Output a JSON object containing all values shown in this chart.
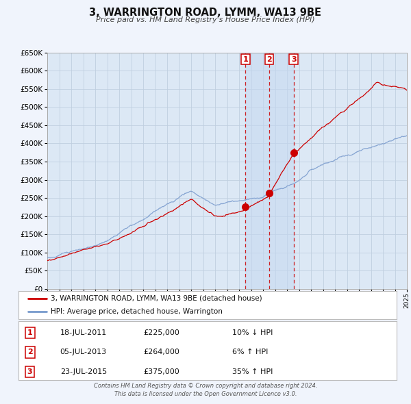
{
  "title": "3, WARRINGTON ROAD, LYMM, WA13 9BE",
  "subtitle": "Price paid vs. HM Land Registry's House Price Index (HPI)",
  "background_color": "#f0f4fc",
  "plot_bg_color": "#dce8f5",
  "grid_color": "#c0cfe0",
  "red_line_color": "#cc0000",
  "blue_line_color": "#7799cc",
  "ylim": [
    0,
    650000
  ],
  "xlim": [
    1995,
    2025
  ],
  "yticks": [
    0,
    50000,
    100000,
    150000,
    200000,
    250000,
    300000,
    350000,
    400000,
    450000,
    500000,
    550000,
    600000,
    650000
  ],
  "sale_events": [
    {
      "date_num": 2011.54,
      "price": 225000,
      "label": "1",
      "hpi_pct": "10% ↓ HPI",
      "date_str": "18-JUL-2011",
      "price_str": "£225,000"
    },
    {
      "date_num": 2013.51,
      "price": 264000,
      "label": "2",
      "hpi_pct": "6% ↑ HPI",
      "date_str": "05-JUL-2013",
      "price_str": "£264,000"
    },
    {
      "date_num": 2015.55,
      "price": 375000,
      "label": "3",
      "hpi_pct": "35% ↑ HPI",
      "date_str": "23-JUL-2015",
      "price_str": "£375,000"
    }
  ],
  "legend_red": "3, WARRINGTON ROAD, LYMM, WA13 9BE (detached house)",
  "legend_blue": "HPI: Average price, detached house, Warrington",
  "footnote1": "Contains HM Land Registry data © Crown copyright and database right 2024.",
  "footnote2": "This data is licensed under the Open Government Licence v3.0."
}
